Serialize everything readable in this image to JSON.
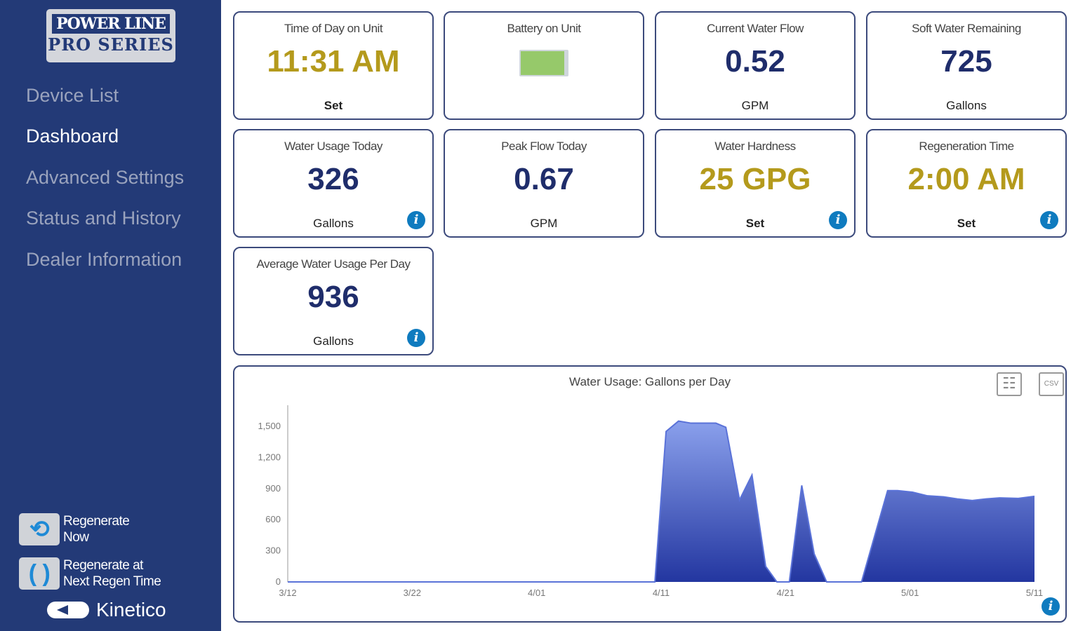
{
  "sidebar": {
    "logo": {
      "line1": "POWER LINE",
      "line2": "PRO SERIES"
    },
    "nav": [
      {
        "label": "Device List"
      },
      {
        "label": "Dashboard",
        "active": true
      },
      {
        "label": "Advanced Settings"
      },
      {
        "label": "Status and History"
      },
      {
        "label": "Dealer Information"
      }
    ],
    "actions": [
      {
        "label1": "Regenerate",
        "label2": "Now",
        "icon": "regenerate-icon"
      },
      {
        "label1": "Regenerate at",
        "label2": "Next Regen Time",
        "icon": "regen-timer-icon"
      }
    ],
    "brand": "Kinetico"
  },
  "cards": [
    {
      "title": "Time of Day on Unit",
      "value": "11:31 AM",
      "unit": "Set"
    },
    {
      "title": "Battery on Unit",
      "battery_level": 1.0
    },
    {
      "title": "Current Water Flow",
      "value": "0.52",
      "unit": "GPM"
    },
    {
      "title": "Soft Water Remaining",
      "value": "725",
      "unit": "Gallons"
    },
    {
      "title": "Water Usage Today",
      "value": "326",
      "unit": "Gallons"
    },
    {
      "title": "Peak Flow Today",
      "value": "0.67",
      "unit": "GPM"
    },
    {
      "title": "Water Hardness",
      "value": "25 GPG",
      "unit": "Set"
    },
    {
      "title": "Regeneration Time",
      "value": "2:00 AM",
      "unit": "Set"
    },
    {
      "title": "Average Water Usage Per Day",
      "value": "936",
      "unit": "Gallons"
    }
  ],
  "chart_buttons": {
    "table": "table-view",
    "csv": "CSV"
  },
  "colors": {
    "sidebar": "#233a77",
    "gold": "#b49a1c",
    "navy": "#1f2d6b",
    "area": "#3249b5"
  },
  "chart_data": {
    "type": "area",
    "title": "Water Usage: Gallons per Day",
    "xlabel": "",
    "ylabel": "",
    "x_tick_labels": [
      "3/12",
      "3/22",
      "4/01",
      "4/11",
      "4/21",
      "5/01",
      "5/11"
    ],
    "y_ticks": [
      0,
      300,
      600,
      900,
      1200,
      1500
    ],
    "y_tick_labels": [
      "0",
      "300",
      "600",
      "900",
      "1,200",
      "1,500"
    ],
    "xlim_days": [
      0,
      60
    ],
    "ylim": [
      0,
      1700
    ],
    "x_days": [
      0,
      29.5,
      30.4,
      31.4,
      32.4,
      34.4,
      35.2,
      36.3,
      37.3,
      38.4,
      39.3,
      40.3,
      41.3,
      42.3,
      43.3,
      46.1,
      48.2,
      49,
      50.2,
      51.4,
      52.7,
      53.8,
      55,
      56.1,
      57.2,
      58.7,
      60
    ],
    "values": [
      0,
      0,
      1450,
      1550,
      1530,
      1530,
      1490,
      790,
      1030,
      150,
      0,
      0,
      930,
      270,
      0,
      0,
      880,
      880,
      865,
      830,
      820,
      800,
      785,
      800,
      810,
      805,
      825
    ]
  }
}
